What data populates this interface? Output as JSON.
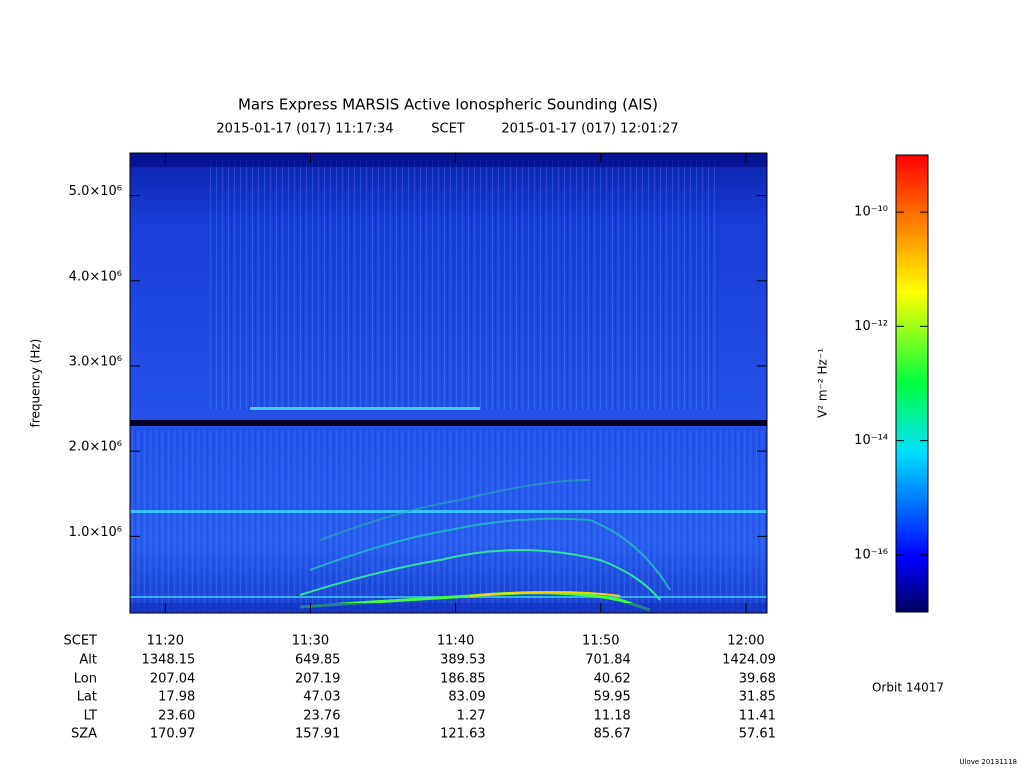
{
  "chart_data": {
    "type": "spectrogram",
    "title": "Mars Express MARSIS Active Ionospheric Sounding (AIS)",
    "start_time": "2015-01-17 (017) 11:17:34",
    "time_system": "SCET",
    "end_time": "2015-01-17 (017) 12:01:27",
    "ylabel": "frequency (Hz)",
    "ylim": [
      100000,
      5500000
    ],
    "yticks": [
      {
        "value": 1000000,
        "label": "1.0×10⁶"
      },
      {
        "value": 2000000,
        "label": "2.0×10⁶"
      },
      {
        "value": 3000000,
        "label": "3.0×10⁶"
      },
      {
        "value": 4000000,
        "label": "4.0×10⁶"
      },
      {
        "value": 5000000,
        "label": "5.0×10⁶"
      }
    ],
    "xticks": [
      "11:20",
      "11:30",
      "11:40",
      "11:50",
      "12:00"
    ],
    "colorbar": {
      "label": "V² m⁻² Hz⁻¹",
      "log_scale": true,
      "zlim": [
        1e-17,
        1e-09
      ],
      "ticks": [
        {
          "value": 1e-10,
          "label": "10⁻¹⁰"
        },
        {
          "value": 1e-12,
          "label": "10⁻¹²"
        },
        {
          "value": 1e-14,
          "label": "10⁻¹⁴"
        },
        {
          "value": 1e-16,
          "label": "10⁻¹⁶"
        }
      ]
    },
    "ephemeris": {
      "labels": [
        "SCET",
        "Alt",
        "Lon",
        "Lat",
        "LT",
        "SZA"
      ],
      "rows": [
        [
          "1348.15",
          "649.85",
          "389.53",
          "701.84",
          "1424.09"
        ],
        [
          "207.04",
          "207.19",
          "186.85",
          "40.62",
          "39.68"
        ],
        [
          "17.98",
          "47.03",
          "83.09",
          "59.95",
          "31.85"
        ],
        [
          "23.60",
          "23.76",
          "1.27",
          "11.18",
          "11.41"
        ],
        [
          "170.97",
          "157.91",
          "121.63",
          "85.67",
          "57.61"
        ]
      ]
    },
    "orbit": "Orbit 14017",
    "footer": "Ulove 20131118"
  }
}
